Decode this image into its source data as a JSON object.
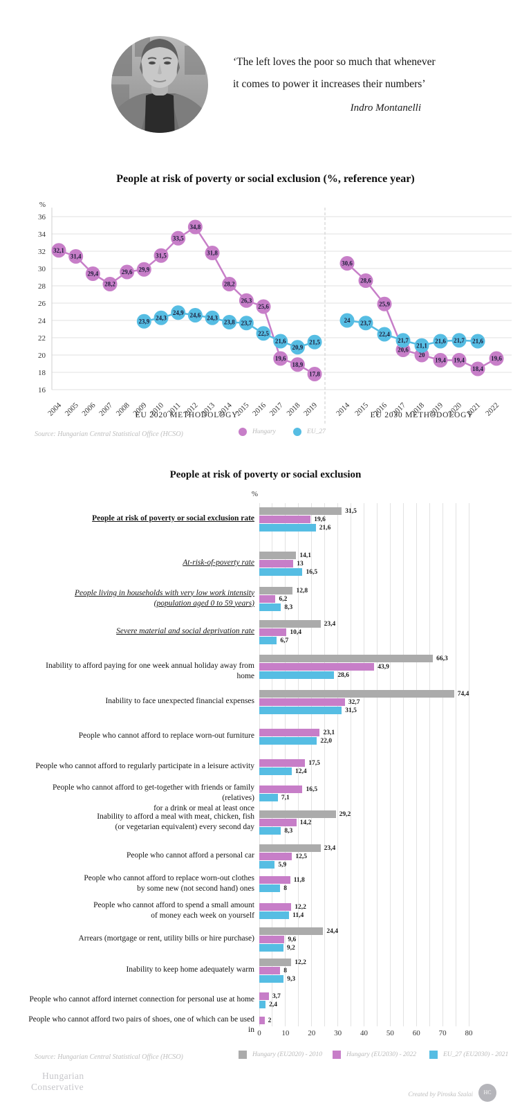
{
  "header": {
    "quote_line1": "‘The left loves the poor so much that whenever",
    "quote_line2": "it comes to power it increases their numbers’",
    "attribution": "Indro Montanelli"
  },
  "chart_data": [
    {
      "type": "line",
      "title": "People at risk of poverty or social exclusion (%, reference year)",
      "ylabel": "%",
      "ylim": [
        16,
        36
      ],
      "yticks": [
        36,
        34,
        32,
        30,
        28,
        26,
        24,
        22,
        20,
        18,
        16
      ],
      "grid": true,
      "panels": [
        {
          "caption": "EU 2020 METHODOLOGY",
          "years": [
            2004,
            2005,
            2006,
            2007,
            2008,
            2009,
            2010,
            2011,
            2012,
            2013,
            2014,
            2015,
            2016,
            2017,
            2018,
            2019
          ],
          "series": [
            {
              "name": "Hungary",
              "color": "#c77ec8",
              "start_year": 2004,
              "values": [
                "32,1",
                "31,4",
                "29,4",
                "28,2",
                "29,6",
                "29,9",
                "31,5",
                "33,5",
                "34,8",
                "31,8",
                "28,2",
                "26,3",
                "25,6",
                "19,6",
                "18,9",
                "17,8"
              ]
            },
            {
              "name": "EU_27",
              "color": "#56bde3",
              "start_year": 2009,
              "values": [
                "23,9",
                "24,3",
                "24,9",
                "24,6",
                "24,3",
                "23,8",
                "23,7",
                "22,5",
                "21,6",
                "20,9",
                "21,5"
              ]
            }
          ]
        },
        {
          "caption": "EU 2030 METHODOLOGY",
          "years": [
            2014,
            2015,
            2016,
            2017,
            2018,
            2019,
            2020,
            2021,
            2022
          ],
          "series": [
            {
              "name": "Hungary",
              "color": "#c77ec8",
              "start_year": 2014,
              "values": [
                "30,6",
                "28,6",
                "25,9",
                "20,6",
                "20",
                "19,4",
                "19,4",
                "18,4",
                "19,6"
              ]
            },
            {
              "name": "EU_27",
              "color": "#56bde3",
              "start_year": 2014,
              "values": [
                "24",
                "23,7",
                "22,4",
                "21,7",
                "21,1",
                "21,6",
                "21,7",
                "21,6"
              ]
            }
          ]
        }
      ],
      "legend": [
        {
          "label": "Hungary",
          "color": "#c77ec8"
        },
        {
          "label": "EU_27",
          "color": "#56bde3"
        }
      ],
      "source": "Source: Hungarian Central Statistical Office (HCSO)"
    },
    {
      "type": "bar",
      "title": "People at risk of poverty or social exclusion",
      "unit_label": "%",
      "xlim": [
        0,
        80
      ],
      "xticks": [
        0,
        10,
        20,
        30,
        40,
        50,
        60,
        70,
        80
      ],
      "grid": true,
      "legend_position": "bottom",
      "series": [
        {
          "name": "Hungary (EU2020) - 2010",
          "color": "#ababab"
        },
        {
          "name": "Hungary (EU2030) - 2022",
          "color": "#c77ec8"
        },
        {
          "name": "EU_27 (EU2030) - 2021",
          "color": "#56bde3"
        }
      ],
      "categories": [
        {
          "label_lines": [
            "People at risk of poverty or social exclusion rate"
          ],
          "emphasis": "bold-underline",
          "values": [
            "31,5",
            "19,6",
            "21,6"
          ]
        },
        {
          "label_lines": [
            "At-risk-of-poverty rate"
          ],
          "emphasis": "italic-underline",
          "values": [
            "14,1",
            "13",
            "16,5"
          ]
        },
        {
          "label_lines": [
            "People living in households with very low work intensity",
            "(population aged 0 to 59 years)"
          ],
          "emphasis": "italic-underline",
          "values": [
            "12,8",
            "6,2",
            "8,3"
          ]
        },
        {
          "label_lines": [
            "Severe material and social deprivation rate"
          ],
          "emphasis": "italic-underline",
          "values": [
            "23,4",
            "10,4",
            "6,7"
          ]
        },
        {
          "label_lines": [
            "Inability to afford paying for one week annual holiday away from home"
          ],
          "values": [
            "66,3",
            "43,9",
            "28,6"
          ]
        },
        {
          "label_lines": [
            "Inability to face unexpected financial expenses"
          ],
          "values": [
            "74,4",
            "32,7",
            "31,5"
          ]
        },
        {
          "label_lines": [
            "People who cannot afford to replace worn-out furniture"
          ],
          "values": [
            null,
            "23,1",
            "22,0"
          ]
        },
        {
          "label_lines": [
            "People who cannot afford to regularly participate in a leisure activity"
          ],
          "values": [
            null,
            "17,5",
            "12,4"
          ]
        },
        {
          "label_lines": [
            "People who cannot afford to get-together with friends or family (relatives)",
            "for a drink or meal at least once"
          ],
          "values": [
            null,
            "16,5",
            "7,1"
          ]
        },
        {
          "label_lines": [
            "Inability to afford a meal with meat, chicken, fish",
            "(or vegetarian equivalent) every second day"
          ],
          "values": [
            "29,2",
            "14,2",
            "8,3"
          ]
        },
        {
          "label_lines": [
            "People who cannot afford a personal car"
          ],
          "values": [
            "23,4",
            "12,5",
            "5,9"
          ]
        },
        {
          "label_lines": [
            "People who cannot afford to replace worn-out clothes",
            "by some new (not second hand) ones"
          ],
          "values": [
            null,
            "11,8",
            "8"
          ]
        },
        {
          "label_lines": [
            "People who cannot afford to spend a small amount",
            "of money each week on yourself"
          ],
          "values": [
            null,
            "12,2",
            "11,4"
          ]
        },
        {
          "label_lines": [
            "Arrears (mortgage or rent, utility bills or hire purchase)"
          ],
          "values": [
            "24,4",
            "9,6",
            "9,2"
          ]
        },
        {
          "label_lines": [
            "Inability to keep home adequately warm"
          ],
          "values": [
            "12,2",
            "8",
            "9,3"
          ]
        },
        {
          "label_lines": [
            "People who cannot afford internet connection for personal use at home"
          ],
          "values": [
            null,
            "3,7",
            "2,4"
          ]
        },
        {
          "label_lines": [
            "People who cannot afford two pairs of shoes, one of which can be used in"
          ],
          "values": [
            null,
            "2",
            null
          ]
        }
      ],
      "source": "Source: Hungarian Central Statistical Office (HCSO)"
    }
  ],
  "footer": {
    "brand_line1": "Hungarian",
    "brand_line2": "Conservative",
    "credit": "Created by Piroska Szalai",
    "logo_monogram": "HC"
  }
}
